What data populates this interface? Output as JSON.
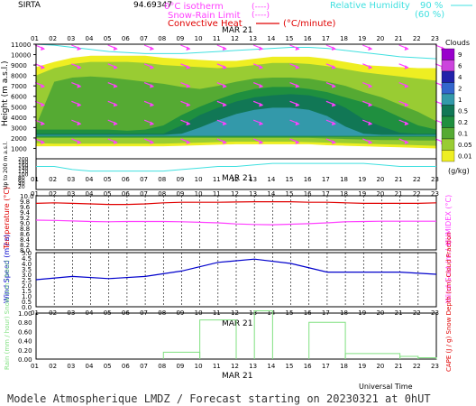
{
  "header": {
    "site": "SIRTA",
    "position": "94.69347",
    "isotherm_label": "0°C isotherm",
    "isotherm_key": "(----)",
    "snowrain_label": "Snow-Rain Limit",
    "snowrain_key": "(----)",
    "convective_label": "Convective Heat",
    "convective_key": "(°C/minute)",
    "rh_label": "Relative Humidity",
    "rh_v1": "90 %",
    "rh_v2": "(60 %)"
  },
  "footer": {
    "title": "Modele Atmospherique LMDZ / Forecast starting on 20230321 at 0hUT",
    "xaxis": "Universal Time"
  },
  "hours": [
    "01",
    "02",
    "03",
    "04",
    "05",
    "06",
    "07",
    "08",
    "09",
    "10",
    "11",
    "12",
    "13",
    "14",
    "15",
    "16",
    "17",
    "18",
    "19",
    "20",
    "21",
    "22",
    "23"
  ],
  "date_label": "MAR 21",
  "colors": {
    "rh_line": "#40e0e0",
    "wind_arrow": "#ff40ff",
    "temperature": "#e00000",
    "humidex": "#ff40ff",
    "wind_speed": "#0000cc",
    "precip": "#80e080",
    "red_text": "#e00000",
    "magenta_text": "#ff40ff"
  },
  "chart_data": [
    {
      "type": "heatmap",
      "title": "Clouds",
      "ylabel": "Height (m a.s.l.)",
      "ylabel2": "Up to 200 m a.s.l.",
      "yticks_upper": [
        "11000",
        "10000",
        "9000",
        "8000",
        "7000",
        "6000",
        "5000",
        "4000",
        "3000",
        "2000",
        "1000"
      ],
      "yticks_lower": [
        "200",
        "180",
        "160",
        "140",
        "120",
        "100",
        "80",
        "60",
        "40",
        "20"
      ],
      "ylim": [
        0,
        11000
      ],
      "legend_title": "Clouds",
      "legend_unit": "(g/kg)",
      "legend_levels": [
        "9",
        "6",
        "4",
        "2",
        "1",
        "0.5",
        "0.2",
        "0.1",
        "0.05",
        "0.01"
      ],
      "legend_colors": [
        "#9900cc",
        "#cc44dd",
        "#2222aa",
        "#3366cc",
        "#3399aa",
        "#117755",
        "#1f8f3f",
        "#55aa33",
        "#99cc33",
        "#eeee22"
      ],
      "cloud_layers": [
        {
          "level": "0.01",
          "top": [
            8800,
            9300,
            9700,
            9900,
            9900,
            9900,
            9900,
            9700,
            9600,
            9500,
            9400,
            9400,
            9600,
            9800,
            9800,
            9800,
            9600,
            9300,
            9000,
            8900,
            8800,
            8700,
            8700
          ],
          "bottom": [
            1200,
            1200,
            1200,
            1200,
            1200,
            1200,
            1200,
            1200,
            1250,
            1300,
            1350,
            1400,
            1400,
            1400,
            1400,
            1400,
            1300,
            1250,
            1200,
            1150,
            1100,
            1050,
            1000
          ]
        },
        {
          "level": "0.05",
          "top": [
            8000,
            8700,
            9100,
            9300,
            9300,
            9300,
            9200,
            9000,
            8900,
            8800,
            8700,
            8800,
            9000,
            9200,
            9200,
            9100,
            8900,
            8600,
            8300,
            8100,
            7900,
            7700,
            7500
          ],
          "bottom": [
            1500,
            1450,
            1450,
            1450,
            1450,
            1450,
            1450,
            1450,
            1500,
            1550,
            1600,
            1650,
            1650,
            1650,
            1650,
            1600,
            1550,
            1500,
            1450,
            1400,
            1350,
            1300,
            1250
          ]
        },
        {
          "level": "0.1",
          "top": [
            3200,
            7400,
            7800,
            7900,
            7800,
            7600,
            7400,
            7200,
            6900,
            6700,
            7000,
            7400,
            7700,
            7800,
            7800,
            7700,
            7400,
            7000,
            6400,
            5900,
            5200,
            4500,
            3600
          ],
          "bottom": [
            2000,
            2000,
            2000,
            2000,
            2000,
            2000,
            2000,
            2000,
            2000,
            2000,
            2000,
            2000,
            2000,
            2000,
            2000,
            2000,
            1950,
            1900,
            1850,
            1800,
            1800,
            1750,
            1750
          ]
        },
        {
          "level": "0.2",
          "top": [
            2800,
            2800,
            2800,
            2800,
            2800,
            2700,
            2800,
            3200,
            4200,
            5000,
            5700,
            6300,
            6700,
            6900,
            6900,
            6700,
            6400,
            5900,
            5400,
            4800,
            4000,
            3200,
            2800
          ],
          "bottom": [
            2100,
            2100,
            2100,
            2100,
            2100,
            2100,
            2100,
            2100,
            2100,
            2100,
            2100,
            2100,
            2100,
            2100,
            2100,
            2100,
            2100,
            2100,
            2100,
            2100,
            2100,
            2100,
            2100
          ]
        },
        {
          "level": "0.5",
          "top": [
            2400,
            2400,
            2400,
            2400,
            2400,
            2400,
            2400,
            2400,
            3200,
            4200,
            4900,
            5500,
            5900,
            6100,
            6200,
            6100,
            5700,
            4900,
            3800,
            3100,
            2500,
            2400,
            2400
          ],
          "bottom": [
            2200,
            2200,
            2200,
            2200,
            2200,
            2200,
            2200,
            2200,
            2200,
            2200,
            2200,
            2200,
            2200,
            2200,
            2200,
            2200,
            2200,
            2200,
            2200,
            2200,
            2200,
            2200,
            2200
          ]
        },
        {
          "level": "1",
          "top": [
            2300,
            2300,
            2300,
            2300,
            2300,
            2300,
            2300,
            2300,
            2400,
            3000,
            3700,
            4300,
            4700,
            4900,
            4900,
            4700,
            4100,
            3100,
            2400,
            2300,
            2300,
            2300,
            2300
          ],
          "bottom": [
            2200,
            2200,
            2200,
            2200,
            2200,
            2200,
            2200,
            2200,
            2200,
            2200,
            2200,
            2200,
            2200,
            2200,
            2200,
            2200,
            2200,
            2200,
            2200,
            2200,
            2200,
            2200,
            2200
          ]
        }
      ],
      "rh_90_contour_height": [
        11000,
        10900,
        10700,
        10500,
        10300,
        10200,
        10100,
        10100,
        10100,
        10200,
        10300,
        10400,
        10500,
        10600,
        10700,
        10700,
        10600,
        10400,
        10200,
        10000,
        9800,
        9700,
        9600
      ],
      "low_rh_contour_height": [
        150,
        150,
        130,
        120,
        120,
        120,
        120,
        120,
        130,
        140,
        150,
        150,
        160,
        170,
        170,
        170,
        170,
        170,
        170,
        160,
        150,
        150,
        150
      ]
    },
    {
      "type": "line",
      "ylabel": "Temperature (°C)",
      "ylabel2": "HUMIDEX (°C)",
      "yticks": [
        "10.0",
        "9.8",
        "9.6",
        "9.4",
        "9.2",
        "9.0",
        "8.8",
        "8.6",
        "8.4",
        "8.2",
        "8.0"
      ],
      "ylim": [
        8.0,
        10.0
      ],
      "x": [
        1,
        2,
        3,
        4,
        5,
        6,
        7,
        8,
        9,
        10,
        11,
        12,
        13,
        14,
        15,
        16,
        17,
        18,
        19,
        20,
        21,
        22,
        23
      ],
      "series": [
        {
          "values": [
            9.72,
            9.74,
            9.72,
            9.7,
            9.68,
            9.68,
            9.7,
            9.74,
            9.76,
            9.76,
            9.76,
            9.77,
            9.78,
            9.78,
            9.78,
            9.76,
            9.76,
            9.74,
            9.72,
            9.72,
            9.72,
            9.72,
            9.74
          ]
        },
        {
          "values": [
            9.1,
            9.09,
            9.07,
            9.05,
            9.04,
            9.05,
            9.05,
            9.05,
            9.04,
            9.02,
            9.0,
            8.96,
            8.94,
            8.93,
            8.95,
            8.97,
            9.0,
            9.04,
            9.05,
            9.06,
            9.06,
            9.06,
            9.06
          ]
        }
      ]
    },
    {
      "type": "line",
      "ylabel": "Wind Speed (m / s)",
      "ylabel2": "Wind Gust (m / s)",
      "yticks": [
        "5.0",
        "4.5",
        "4.0",
        "3.5",
        "3.0",
        "2.5",
        "2.0",
        "1.5",
        "1.0",
        "0.5",
        "0.0"
      ],
      "ylim": [
        0.0,
        5.0
      ],
      "x": [
        1,
        3,
        5,
        7,
        9,
        11,
        13,
        15,
        17,
        19,
        21,
        23
      ],
      "series": [
        {
          "values": [
            2.5,
            2.8,
            2.6,
            2.8,
            3.3,
            4.1,
            4.4,
            4.0,
            3.2,
            3.2,
            3.2,
            3.0
          ]
        }
      ]
    },
    {
      "type": "bar",
      "ylabel": "Rain (mm / hour) Snow (cm / hour)",
      "ylabel2": "CAPE (J / g) Snow Depth (cm) Cloud Fraction",
      "yticks": [
        "1.00",
        "0.80",
        "0.60",
        "0.40",
        "0.20",
        "0.00"
      ],
      "ylim": [
        0.0,
        1.0
      ],
      "bins": [
        "0-8",
        "8-10",
        "10-12",
        "12-13",
        "13-14",
        "14-16",
        "16-18",
        "18-21",
        "21-22",
        "22-23"
      ],
      "values": [
        0.0,
        0.15,
        0.85,
        0.0,
        1.05,
        0.0,
        0.8,
        0.12,
        0.06,
        0.03
      ]
    }
  ]
}
